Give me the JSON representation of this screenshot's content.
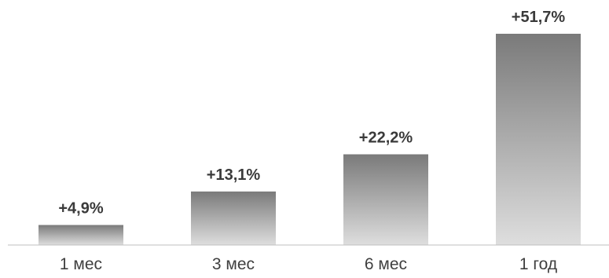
{
  "chart_data": {
    "type": "bar",
    "categories": [
      "1 мес",
      "3 мес",
      "6 мес",
      "1 год"
    ],
    "values": [
      4.9,
      13.1,
      22.2,
      51.7
    ],
    "data_labels": [
      "+4,9%",
      "+13,1%",
      "+22,2%",
      "+51,7%"
    ],
    "title": "",
    "xlabel": "",
    "ylabel": "",
    "ylim": [
      0,
      51.7
    ],
    "grid": false,
    "legend": "none",
    "colors": {
      "bar_top": "#7a7a7a",
      "bar_bottom": "#dedede",
      "axis": "#bfbfbf",
      "label": "#3a3a3a"
    }
  }
}
